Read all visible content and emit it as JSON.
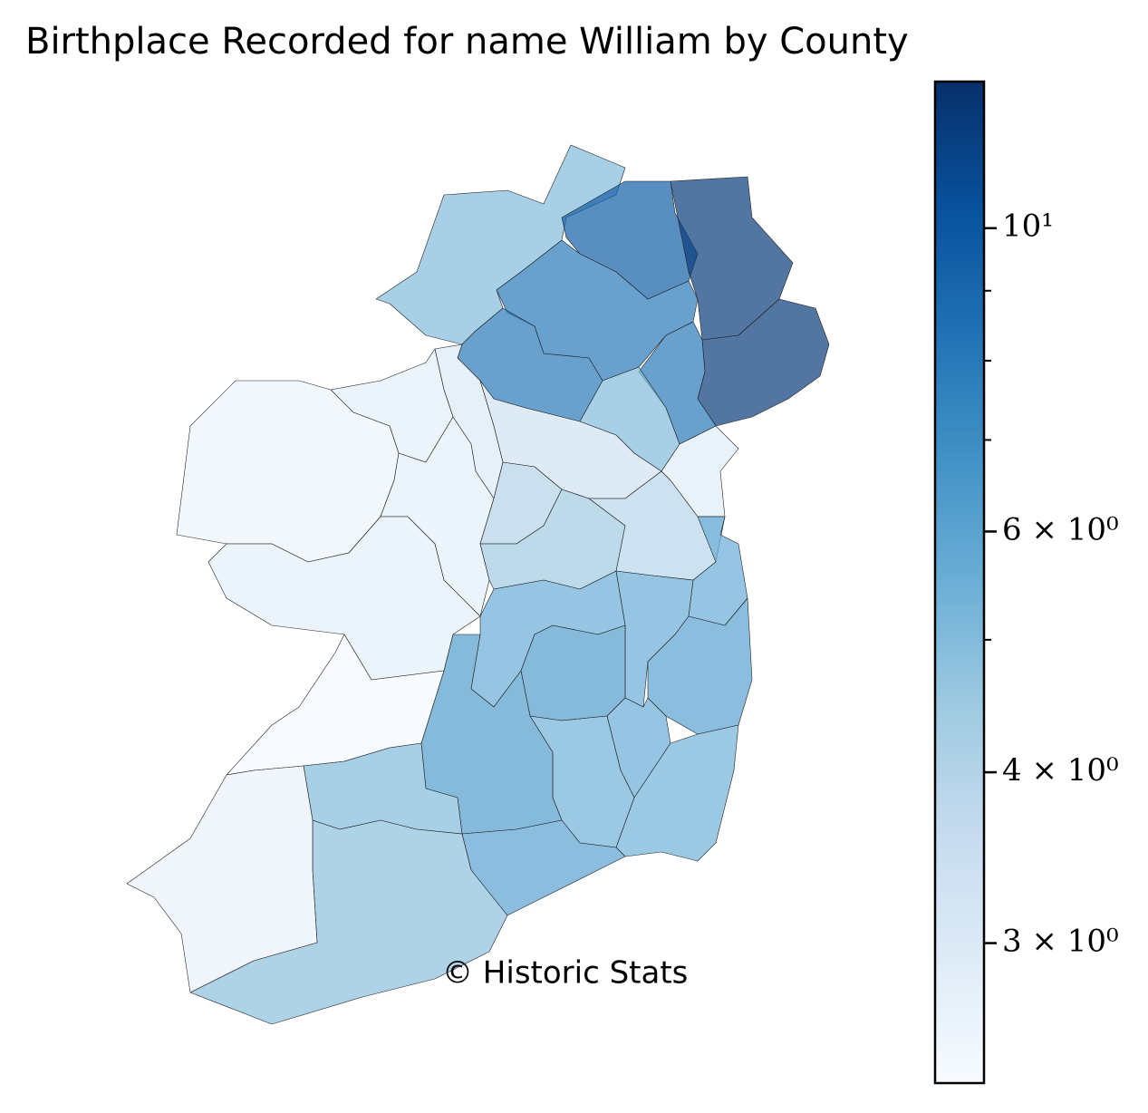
{
  "chart_data": {
    "type": "choropleth",
    "title": "Birthplace Recorded for name William by County",
    "annotation": "© Historic Stats",
    "values": [
      5.0,
      9.5,
      12.0,
      8.0,
      12.0,
      8.0,
      8.0,
      5.0,
      2.9,
      3.3,
      3.0,
      2.8,
      2.6,
      2.8,
      2.8,
      4.0,
      4.4,
      3.9,
      5.6,
      5.6,
      5.6,
      6.0,
      6.3,
      5.6,
      5.4,
      5.4,
      6.3,
      2.45,
      5.0,
      6.0,
      4.8,
      2.7
    ],
    "log_scale": true,
    "alpha": 0.7,
    "colormap": [
      "#f7fbff",
      "#deebf7",
      "#c6dbef",
      "#9ecae1",
      "#6baed6",
      "#4292c6",
      "#2171b5",
      "#08519c",
      "#08306b"
    ],
    "ylim": [
      2.37,
      12.8
    ],
    "yticks": [
      {
        "value": 3,
        "label": "3 × 10⁰"
      },
      {
        "value": 4,
        "label": "4 × 10⁰"
      },
      {
        "value": 6,
        "label": "6 × 10⁰"
      },
      {
        "value": 10,
        "label": "10¹"
      }
    ],
    "yminorticks": [
      5,
      7,
      8,
      9
    ]
  }
}
